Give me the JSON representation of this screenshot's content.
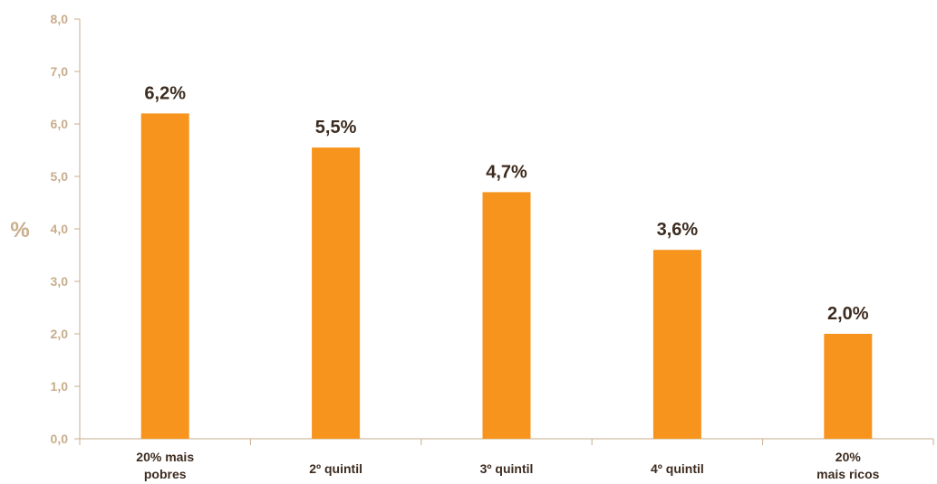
{
  "chart_data": {
    "type": "bar",
    "categories": [
      [
        "20% mais",
        "pobres"
      ],
      [
        "2º quintil"
      ],
      [
        "3º quintil"
      ],
      [
        "4º quintil"
      ],
      [
        "20%",
        "mais ricos"
      ]
    ],
    "values": [
      6.2,
      5.55,
      4.7,
      3.6,
      2.0
    ],
    "data_labels": [
      "6,2%",
      "5,5%",
      "4,7%",
      "3,6%",
      "2,0%"
    ],
    "ylabel": "%",
    "ylim": [
      0,
      8
    ],
    "yticks": [
      0,
      1,
      2,
      3,
      4,
      5,
      6,
      7,
      8
    ],
    "ytick_labels": [
      "0,0",
      "1,0",
      "2,0",
      "3,0",
      "4,0",
      "5,0",
      "6,0",
      "7,0",
      "8,0"
    ],
    "grid": false,
    "legend": "none"
  },
  "colors": {
    "bar": "#f7941d",
    "axis": "#c8ad8c",
    "tick_label": "#c8ad8c",
    "category_label": "#3d2b1f",
    "data_label": "#3d2b1f",
    "ylabel": "#c8ad8c"
  }
}
